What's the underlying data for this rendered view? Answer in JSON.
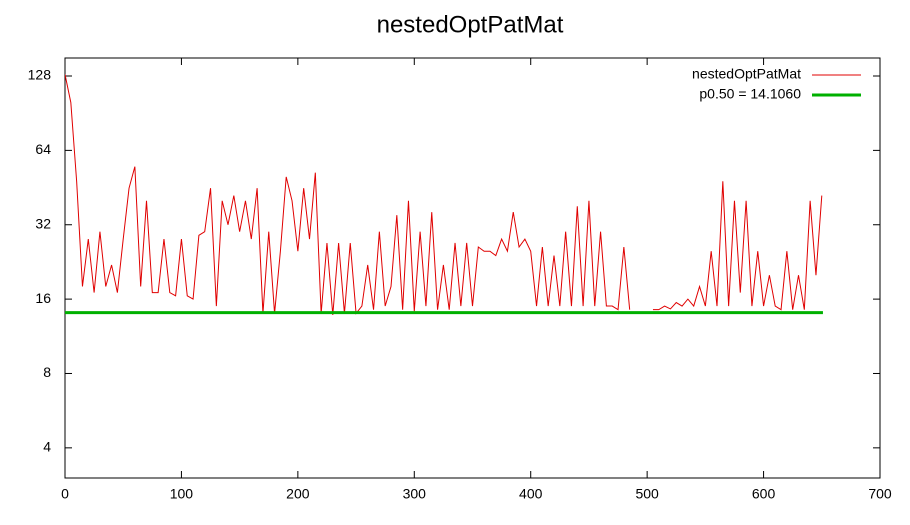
{
  "chart_data": {
    "type": "line",
    "title": "nestedOptPatMat",
    "xlim": [
      0,
      700
    ],
    "xticks": [
      0,
      100,
      200,
      300,
      400,
      500,
      600,
      700
    ],
    "ylim": [
      3.02,
      151.4
    ],
    "yticks": [
      4,
      8,
      16,
      32,
      64,
      128
    ],
    "log_scale_y": true,
    "legend": "top-right",
    "series": [
      {
        "name": "nestedOptPatMat",
        "color": "#e00000",
        "x": [
          0,
          5,
          10,
          15,
          20,
          25,
          30,
          35,
          40,
          45,
          50,
          55,
          60,
          65,
          70,
          75,
          80,
          85,
          90,
          95,
          100,
          105,
          110,
          115,
          120,
          125,
          130,
          135,
          140,
          145,
          150,
          155,
          160,
          165,
          170,
          175,
          180,
          185,
          190,
          195,
          200,
          205,
          210,
          215,
          220,
          225,
          230,
          235,
          240,
          245,
          250,
          255,
          260,
          265,
          270,
          275,
          280,
          285,
          290,
          295,
          300,
          305,
          310,
          315,
          320,
          325,
          330,
          335,
          340,
          345,
          350,
          355,
          360,
          365,
          370,
          375,
          380,
          385,
          390,
          395,
          400,
          405,
          410,
          415,
          420,
          425,
          430,
          435,
          440,
          445,
          450,
          455,
          460,
          465,
          470,
          475,
          480,
          485,
          490,
          495,
          500,
          505,
          510,
          515,
          520,
          525,
          530,
          535,
          540,
          545,
          550,
          555,
          560,
          565,
          570,
          575,
          580,
          585,
          590,
          595,
          600,
          605,
          610,
          615,
          620,
          625,
          630,
          635,
          640,
          645,
          650
        ],
        "values": [
          130,
          100,
          48,
          18,
          28,
          17,
          30,
          18,
          22,
          17,
          28,
          45,
          55,
          18,
          40,
          17,
          17,
          28,
          17,
          16.5,
          28,
          16.5,
          16,
          29,
          30,
          45,
          15,
          40,
          32,
          42,
          30,
          40,
          28,
          45,
          14,
          30,
          14,
          25,
          50,
          40,
          25,
          45,
          28,
          52,
          14,
          27,
          13.8,
          27,
          14,
          27,
          14,
          15,
          22,
          14.5,
          30,
          15,
          18,
          35,
          14.5,
          40,
          14.3,
          30,
          15,
          36,
          14.5,
          22,
          14.5,
          27,
          15,
          27,
          15,
          26,
          25,
          25,
          24,
          28,
          25,
          36,
          26,
          28,
          25,
          15,
          26,
          15,
          24,
          15,
          30,
          15,
          38,
          15,
          40,
          15,
          30,
          15,
          15,
          14.5,
          26,
          14.5,
          null,
          null,
          null,
          14.5,
          14.5,
          15,
          14.6,
          15.5,
          15,
          16,
          15,
          18,
          15,
          25,
          15,
          48,
          15,
          40,
          17,
          40,
          15,
          25,
          15,
          20,
          15,
          14.5,
          25,
          14.5,
          20,
          14.5,
          40,
          20,
          42
        ]
      },
      {
        "name": "p0.50 = 14.1060",
        "color": "#00b000",
        "x": [
          0,
          651
        ],
        "values": [
          14.106,
          14.106
        ]
      }
    ]
  }
}
